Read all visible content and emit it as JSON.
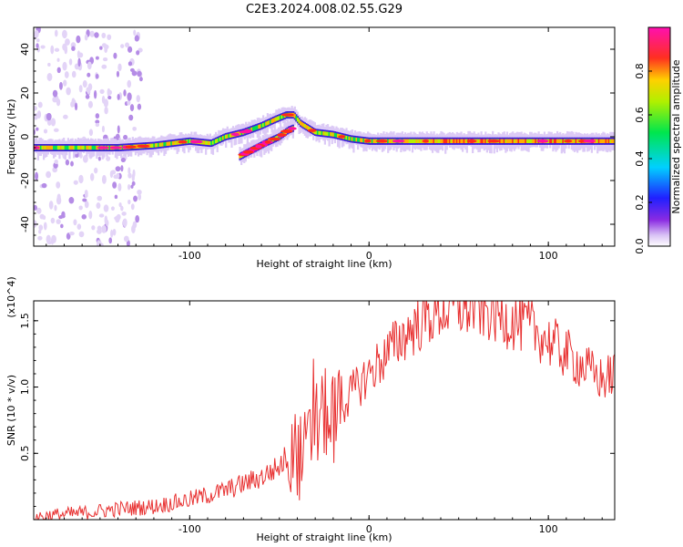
{
  "title": "C2E3.2024.008.02.55.G29",
  "chart_data": [
    {
      "type": "heatmap",
      "title": "C2E3.2024.008.02.55.G29",
      "xlabel": "Height of straight line (km)",
      "ylabel": "Frequency (Hz)",
      "xlim": [
        -187,
        137
      ],
      "ylim": [
        -50,
        50
      ],
      "xticks": [
        -100,
        0,
        100
      ],
      "yticks": [
        -40,
        -20,
        0,
        20,
        40
      ],
      "grid": false,
      "colorbar": {
        "label": "Normalized spectral amplitude",
        "range": [
          0,
          1
        ],
        "ticks": [
          0.0,
          0.2,
          0.4,
          0.6,
          0.8
        ],
        "colormap": "rainbow (purple-blue-cyan-green-yellow-orange-red-magenta)"
      },
      "ridges": [
        {
          "x": [
            -187,
            -160,
            -140,
            -120,
            -100,
            -88,
            -80,
            -70,
            -60,
            -52,
            -46,
            -42,
            -38,
            -30,
            -20,
            -10,
            0,
            20,
            40,
            60,
            80,
            100,
            120,
            137
          ],
          "y": [
            -5,
            -5,
            -5,
            -4,
            -2,
            -3,
            0,
            2,
            5,
            8,
            10,
            10,
            6,
            2,
            1,
            -1,
            -2,
            -2,
            -2,
            -2,
            -2,
            -2,
            -2,
            -2
          ]
        },
        {
          "x": [
            -72,
            -65,
            -58,
            -50,
            -45,
            -42
          ],
          "y": [
            -9,
            -6,
            -3,
            0,
            3,
            4
          ]
        }
      ]
    },
    {
      "type": "line",
      "xlabel": "Height of straight line (km)",
      "ylabel": "SNR (10 * v/v)",
      "yunit_multiplier": "(x10^4)",
      "xlim": [
        -187,
        137
      ],
      "ylim": [
        0,
        1.65
      ],
      "xticks": [
        -100,
        0,
        100
      ],
      "yticks": [
        0.5,
        1.0,
        1.5
      ],
      "grid": false,
      "series": [
        {
          "color": "#e83030",
          "x": [
            -187,
            -160,
            -140,
            -120,
            -100,
            -80,
            -60,
            -50,
            -42,
            -38,
            -35,
            -30,
            -25,
            -20,
            -15,
            -10,
            0,
            10,
            20,
            30,
            40,
            50,
            60,
            70,
            80,
            90,
            100,
            110,
            120,
            130,
            137
          ],
          "y": [
            0.02,
            0.05,
            0.08,
            0.1,
            0.15,
            0.22,
            0.32,
            0.4,
            0.55,
            0.45,
            0.5,
            0.7,
            0.8,
            0.75,
            0.85,
            0.95,
            1.1,
            1.25,
            1.4,
            1.5,
            1.58,
            1.6,
            1.6,
            1.55,
            1.5,
            1.45,
            1.35,
            1.25,
            1.15,
            1.05,
            1.1
          ]
        }
      ]
    }
  ]
}
